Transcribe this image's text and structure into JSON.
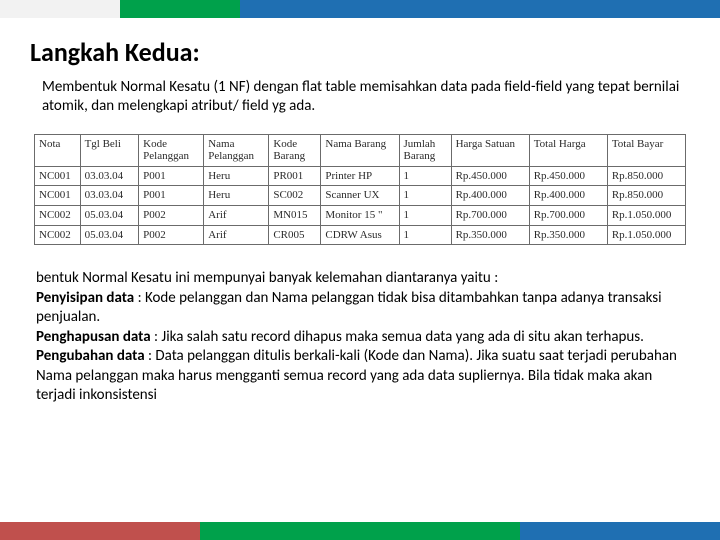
{
  "colors": {
    "top_left": "#f2f2f2",
    "top_mid": "#00a14b",
    "top_right": "#1f6fb2",
    "bottom_left": "#c0504d",
    "bottom_mid": "#00a14b",
    "bottom_right": "#1f6fb2",
    "text": "#000000",
    "table_border": "#6b6b6b"
  },
  "title": "Langkah Kedua:",
  "intro": "Membentuk Normal Kesatu (1 NF) dengan flat table memisahkan data pada field-field yang tepat bernilai atomik, dan melengkapi atribut/ field yg ada.",
  "table": {
    "columns": [
      "Nota",
      "Tgl Beli",
      "Kode Pelanggan",
      "Nama Pelanggan",
      "Kode Barang",
      "Nama Barang",
      "Jumlah Barang",
      "Harga Satuan",
      "Total Harga",
      "Total Bayar"
    ],
    "rows": [
      [
        "NC001",
        "03.03.04",
        "P001",
        "Heru",
        "PR001",
        "Printer HP",
        "1",
        "Rp.450.000",
        "Rp.450.000",
        "Rp.850.000"
      ],
      [
        "NC001",
        "03.03.04",
        "P001",
        "Heru",
        "SC002",
        "Scanner UX",
        "1",
        "Rp.400.000",
        "Rp.400.000",
        "Rp.850.000"
      ],
      [
        "NC002",
        "05.03.04",
        "P002",
        "Arif",
        "MN015",
        "Monitor 15 \"",
        "1",
        "Rp.700.000",
        "Rp.700.000",
        "Rp.1.050.000"
      ],
      [
        "NC002",
        "05.03.04",
        "P002",
        "Arif",
        "CR005",
        "CDRW Asus",
        "1",
        "Rp.350.000",
        "Rp.350.000",
        "Rp.1.050.000"
      ]
    ],
    "col_widths": [
      "7%",
      "9%",
      "10%",
      "10%",
      "8%",
      "12%",
      "8%",
      "12%",
      "12%",
      "12%"
    ]
  },
  "notes": {
    "line1": "bentuk Normal Kesatu ini mempunyai banyak kelemahan diantaranya yaitu :",
    "p1_label": "Penyisipan data",
    "p1_text": "     : Kode pelanggan dan Nama pelanggan tidak bisa ditambahkan tanpa adanya transaksi penjualan.",
    "p2_label": "Penghapusan data",
    "p2_text": " : Jika salah satu record dihapus maka semua data yang ada di   situ akan terhapus.",
    "p3_label": "Pengubahan data",
    "p3_text": "   : Data pelanggan ditulis berkali-kali (Kode dan Nama). Jika suatu saat terjadi perubahan Nama pelanggan maka harus mengganti semua record yang ada data supliernya. Bila tidak maka akan terjadi inkonsistensi"
  }
}
